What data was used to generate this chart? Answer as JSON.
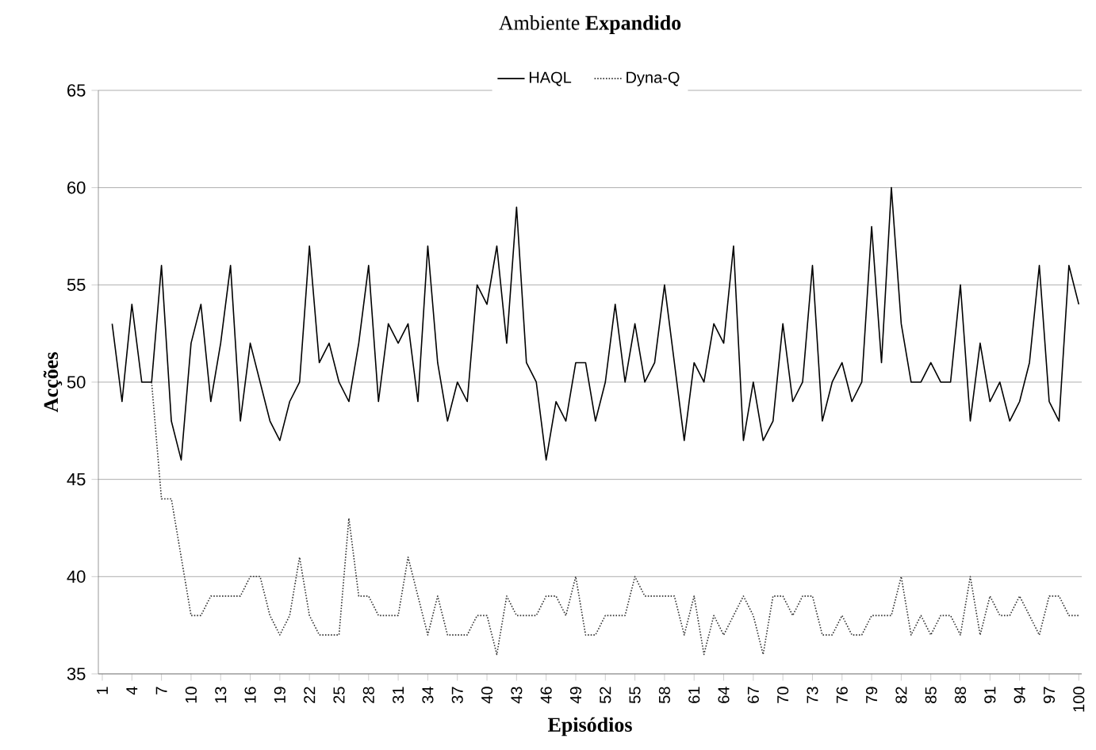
{
  "chart_data": {
    "type": "line",
    "title": "Ambiente **Expandido**",
    "xlabel": "Episódios",
    "ylabel": "Acções",
    "x": [
      2,
      3,
      4,
      5,
      6,
      7,
      8,
      9,
      10,
      11,
      12,
      13,
      14,
      15,
      16,
      17,
      18,
      19,
      20,
      21,
      22,
      23,
      24,
      25,
      26,
      27,
      28,
      29,
      30,
      31,
      32,
      33,
      34,
      35,
      36,
      37,
      38,
      39,
      40,
      41,
      42,
      43,
      44,
      45,
      46,
      47,
      48,
      49,
      50,
      51,
      52,
      53,
      54,
      55,
      56,
      57,
      58,
      59,
      60,
      61,
      62,
      63,
      64,
      65,
      66,
      67,
      68,
      69,
      70,
      71,
      72,
      73,
      74,
      75,
      76,
      77,
      78,
      79,
      80,
      81,
      82,
      83,
      84,
      85,
      86,
      87,
      88,
      89,
      90,
      91,
      92,
      93,
      94,
      95,
      96,
      97,
      98,
      99,
      100
    ],
    "series": [
      {
        "name": "HAQL",
        "color": "#000000",
        "line_style": "solid",
        "values": [
          53,
          49,
          54,
          50,
          50,
          56,
          48,
          46,
          52,
          54,
          49,
          52,
          56,
          48,
          52,
          50,
          48,
          47,
          49,
          50,
          57,
          51,
          52,
          50,
          49,
          52,
          56,
          49,
          53,
          52,
          53,
          49,
          57,
          51,
          48,
          50,
          49,
          55,
          54,
          57,
          52,
          59,
          51,
          50,
          46,
          49,
          48,
          51,
          51,
          48,
          50,
          54,
          50,
          53,
          50,
          51,
          55,
          51,
          47,
          51,
          50,
          53,
          52,
          57,
          47,
          50,
          47,
          48,
          53,
          49,
          50,
          56,
          48,
          50,
          51,
          49,
          50,
          58,
          51,
          60,
          53,
          50,
          50,
          51,
          50,
          50,
          55,
          48,
          52,
          49,
          50,
          48,
          49,
          51,
          56,
          49,
          48,
          56,
          54
        ]
      },
      {
        "name": "Dyna-Q",
        "color": "#333333",
        "line_style": "dotted",
        "values": [
          null,
          null,
          null,
          null,
          50,
          44,
          44,
          41,
          38,
          38,
          39,
          39,
          39,
          39,
          40,
          40,
          38,
          37,
          38,
          41,
          38,
          37,
          37,
          37,
          43,
          39,
          39,
          38,
          38,
          38,
          41,
          39,
          37,
          39,
          37,
          37,
          37,
          38,
          38,
          36,
          39,
          38,
          38,
          38,
          39,
          39,
          38,
          40,
          37,
          37,
          38,
          38,
          38,
          40,
          39,
          39,
          39,
          39,
          37,
          39,
          36,
          38,
          37,
          38,
          39,
          38,
          36,
          39,
          39,
          38,
          39,
          39,
          37,
          37,
          38,
          37,
          37,
          38,
          38,
          38,
          40,
          37,
          38,
          37,
          38,
          38,
          37,
          40,
          37,
          39,
          38,
          38,
          39,
          38,
          37,
          39,
          39,
          38,
          38
        ]
      }
    ],
    "xlim": [
      0.6,
      100.3
    ],
    "xticks": [
      1,
      4,
      7,
      10,
      13,
      16,
      19,
      22,
      25,
      28,
      31,
      34,
      37,
      40,
      43,
      46,
      49,
      52,
      55,
      58,
      61,
      64,
      67,
      70,
      73,
      76,
      79,
      82,
      85,
      88,
      91,
      94,
      97,
      100
    ],
    "ylim": [
      35,
      65
    ],
    "yticks": [
      35,
      40,
      45,
      50,
      55,
      60,
      65
    ],
    "grid": "y",
    "legend": "top",
    "marker": "none"
  }
}
